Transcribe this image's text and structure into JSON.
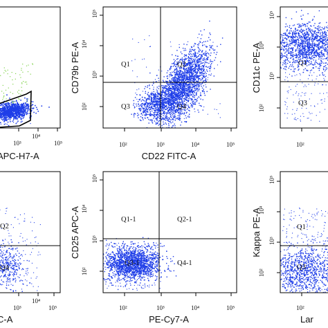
{
  "chart_data": [
    {
      "type": "scatter",
      "panel": "top-left",
      "xlabel": "APC-H7-A",
      "ylabel": "",
      "x_ticks": [
        "10³",
        "10⁴",
        "10⁵"
      ],
      "y_ticks": [],
      "quadrants": [],
      "gate": "polygon",
      "colors": {
        "events": "#1f3ee8",
        "gated_events": "#7fd14a"
      }
    },
    {
      "type": "scatter",
      "panel": "top-middle",
      "xlabel": "CD22 FITC-A",
      "ylabel": "CD79b PE-A",
      "x_ticks": [
        "10²",
        "10³",
        "10⁴",
        "10⁵"
      ],
      "y_ticks": [
        "10²",
        "10³",
        "10⁴",
        "10⁵"
      ],
      "quadrants": [
        "Q1",
        "Q2",
        "Q3",
        "Q4"
      ],
      "colors": {
        "events": "#1f3ee8"
      }
    },
    {
      "type": "scatter",
      "panel": "top-right",
      "xlabel": "",
      "ylabel": "CD11c PE-A",
      "x_ticks": [
        "10²"
      ],
      "y_ticks": [
        "10²",
        "10³",
        "10⁴",
        "10⁵"
      ],
      "quadrants": [
        "Q1",
        "Q3"
      ],
      "colors": {
        "events": "#1f3ee8"
      }
    },
    {
      "type": "scatter",
      "panel": "bottom-left",
      "xlabel": "C-A",
      "ylabel": "",
      "x_ticks": [
        "10³",
        "10⁴",
        "10⁵"
      ],
      "y_ticks": [],
      "quadrants": [
        "Q2",
        "Q4"
      ],
      "colors": {
        "events": "#1f3ee8"
      }
    },
    {
      "type": "scatter",
      "panel": "bottom-middle",
      "xlabel": "PE-Cy7-A",
      "ylabel": "CD25 APC-A",
      "x_ticks": [
        "10²",
        "10³",
        "10⁴",
        "10⁵"
      ],
      "y_ticks": [
        "10²",
        "10³",
        "10⁴",
        "10⁵"
      ],
      "quadrants": [
        "Q1-1",
        "Q2-1",
        "Q3-1",
        "Q4-1"
      ],
      "colors": {
        "events": "#1f3ee8"
      }
    },
    {
      "type": "scatter",
      "panel": "bottom-right",
      "xlabel": "Lar",
      "ylabel": "Kappa PE-A",
      "x_ticks": [
        "10²"
      ],
      "y_ticks": [
        "10²",
        "10³",
        "10⁴",
        "10⁵"
      ],
      "quadrants": [
        "Q1",
        "Q3"
      ],
      "colors": {
        "events": "#1f3ee8"
      }
    }
  ]
}
